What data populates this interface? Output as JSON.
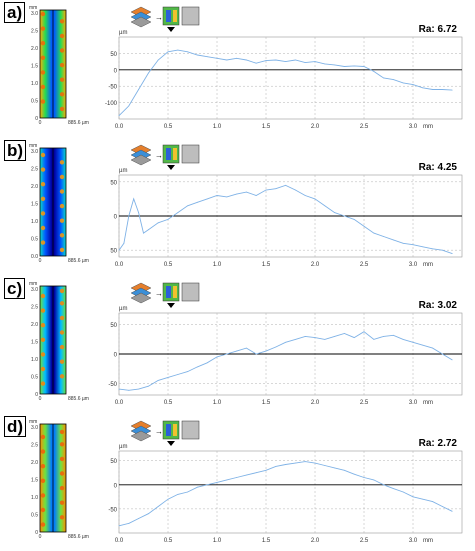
{
  "panels": [
    {
      "label": "a)",
      "ra": "Ra: 6.72",
      "y_unit": "µm",
      "x_unit": "mm",
      "yticks": [
        "50",
        "0",
        "-50",
        "-100"
      ],
      "xticks": [
        "0.0",
        "0.5",
        "1.0",
        "1.5",
        "2.0",
        "2.5",
        "3.0"
      ],
      "thumb": {
        "unit": "mm",
        "yticks": [
          "3.0",
          "2.5",
          "2.0",
          "1.5",
          "1.0",
          "0.5",
          "0"
        ],
        "xticks": [
          "0",
          "885.6 µm"
        ]
      }
    },
    {
      "label": "b)",
      "ra": "Ra: 4.25",
      "y_unit": "µm",
      "x_unit": "mm",
      "yticks": [
        "50",
        "0",
        "50"
      ],
      "xticks": [
        "0.0",
        "0.5",
        "1.0",
        "1.5",
        "2.0",
        "2.5",
        "3.0"
      ],
      "thumb": {
        "unit": "mm",
        "yticks": [
          "3.0",
          "2.5",
          "2.0",
          "1.5",
          "1.0",
          "0.5",
          "0.0"
        ],
        "xticks": [
          "0",
          "885.6 µm"
        ]
      }
    },
    {
      "label": "c)",
      "ra": "Ra: 3.02",
      "y_unit": "µm",
      "x_unit": "mm",
      "yticks": [
        "50",
        "0",
        "-50"
      ],
      "xticks": [
        "0.0",
        "0.5",
        "1.0",
        "1.5",
        "2.0",
        "2.5",
        "3.0"
      ],
      "thumb": {
        "unit": "mm",
        "yticks": [
          "3.0",
          "2.5",
          "2.0",
          "1.5",
          "1.0",
          "0.5",
          "0"
        ],
        "xticks": [
          "0",
          "885.6 µm"
        ]
      }
    },
    {
      "label": "d)",
      "ra": "Ra: 2.72",
      "y_unit": "µm",
      "x_unit": "mm",
      "yticks": [
        "50",
        "0",
        "-50"
      ],
      "xticks": [
        "0.0",
        "0.5",
        "1.0",
        "1.5",
        "2.0",
        "2.5",
        "3.0"
      ],
      "thumb": {
        "unit": "mm",
        "yticks": [
          "3.0",
          "2.5",
          "2.0",
          "1.5",
          "1.0",
          "0.5",
          "0"
        ],
        "xticks": [
          "0",
          "885.6 µm"
        ]
      }
    }
  ],
  "colors": {
    "profile": "#7fb2e6",
    "zero_line": "#000000",
    "grid": "#b0b0b0",
    "axis_text": "#333333"
  },
  "chart_data": [
    {
      "type": "line",
      "title": "Ra: 6.72",
      "xlabel": "mm",
      "ylabel": "µm",
      "xlim": [
        0,
        3.5
      ],
      "ylim": [
        -150,
        100
      ],
      "grid": true,
      "x": [
        0.0,
        0.1,
        0.2,
        0.3,
        0.4,
        0.5,
        0.6,
        0.7,
        0.8,
        0.9,
        1.0,
        1.1,
        1.2,
        1.3,
        1.4,
        1.5,
        1.6,
        1.7,
        1.8,
        1.9,
        2.0,
        2.1,
        2.2,
        2.3,
        2.4,
        2.5,
        2.6,
        2.7,
        2.8,
        2.9,
        3.0,
        3.1,
        3.2,
        3.3,
        3.4
      ],
      "y": [
        -140,
        -110,
        -60,
        -10,
        30,
        55,
        60,
        55,
        45,
        40,
        35,
        30,
        35,
        30,
        20,
        28,
        30,
        25,
        30,
        22,
        25,
        18,
        15,
        10,
        12,
        10,
        -5,
        -25,
        -30,
        -40,
        -45,
        -55,
        -60,
        -60,
        -62
      ]
    },
    {
      "type": "line",
      "title": "Ra: 4.25",
      "xlabel": "mm",
      "ylabel": "µm",
      "xlim": [
        0,
        3.5
      ],
      "ylim": [
        -60,
        60
      ],
      "grid": true,
      "x": [
        0.0,
        0.05,
        0.1,
        0.15,
        0.2,
        0.25,
        0.3,
        0.4,
        0.5,
        0.6,
        0.7,
        0.8,
        0.9,
        1.0,
        1.1,
        1.2,
        1.3,
        1.4,
        1.5,
        1.6,
        1.7,
        1.8,
        1.9,
        2.0,
        2.1,
        2.2,
        2.3,
        2.4,
        2.5,
        2.6,
        2.7,
        2.8,
        2.9,
        3.0,
        3.1,
        3.2,
        3.3,
        3.4
      ],
      "y": [
        -50,
        -40,
        0,
        25,
        5,
        -25,
        -20,
        -10,
        -5,
        5,
        15,
        20,
        25,
        30,
        28,
        32,
        35,
        30,
        38,
        40,
        45,
        38,
        30,
        25,
        15,
        5,
        0,
        -5,
        -15,
        -25,
        -30,
        -35,
        -40,
        -42,
        -45,
        -48,
        -50,
        -55
      ]
    },
    {
      "type": "line",
      "title": "Ra: 3.02",
      "xlabel": "mm",
      "ylabel": "µm",
      "xlim": [
        0,
        3.5
      ],
      "ylim": [
        -70,
        70
      ],
      "grid": true,
      "x": [
        0.0,
        0.1,
        0.2,
        0.3,
        0.4,
        0.5,
        0.6,
        0.7,
        0.8,
        0.9,
        1.0,
        1.1,
        1.2,
        1.3,
        1.4,
        1.5,
        1.6,
        1.7,
        1.8,
        1.9,
        2.0,
        2.1,
        2.2,
        2.3,
        2.4,
        2.5,
        2.6,
        2.7,
        2.8,
        2.9,
        3.0,
        3.1,
        3.2,
        3.3,
        3.4
      ],
      "y": [
        -60,
        -62,
        -60,
        -55,
        -45,
        -40,
        -35,
        -30,
        -22,
        -15,
        -5,
        0,
        5,
        10,
        0,
        5,
        12,
        20,
        25,
        30,
        28,
        25,
        30,
        35,
        28,
        38,
        25,
        30,
        32,
        25,
        20,
        15,
        10,
        0,
        -10
      ]
    },
    {
      "type": "line",
      "title": "Ra: 2.72",
      "xlabel": "mm",
      "ylabel": "µm",
      "xlim": [
        0,
        3.5
      ],
      "ylim": [
        -100,
        70
      ],
      "grid": true,
      "x": [
        0.0,
        0.1,
        0.2,
        0.3,
        0.4,
        0.5,
        0.6,
        0.7,
        0.8,
        0.9,
        1.0,
        1.1,
        1.2,
        1.3,
        1.4,
        1.5,
        1.6,
        1.7,
        1.8,
        1.9,
        2.0,
        2.1,
        2.2,
        2.3,
        2.4,
        2.5,
        2.6,
        2.7,
        2.8,
        2.9,
        3.0,
        3.1,
        3.2,
        3.3,
        3.4
      ],
      "y": [
        -85,
        -80,
        -70,
        -60,
        -45,
        -30,
        -20,
        -15,
        -5,
        0,
        5,
        10,
        15,
        20,
        25,
        30,
        38,
        42,
        45,
        48,
        45,
        40,
        35,
        30,
        22,
        15,
        10,
        0,
        -8,
        -15,
        -25,
        -30,
        -35,
        -45,
        -55
      ]
    }
  ]
}
